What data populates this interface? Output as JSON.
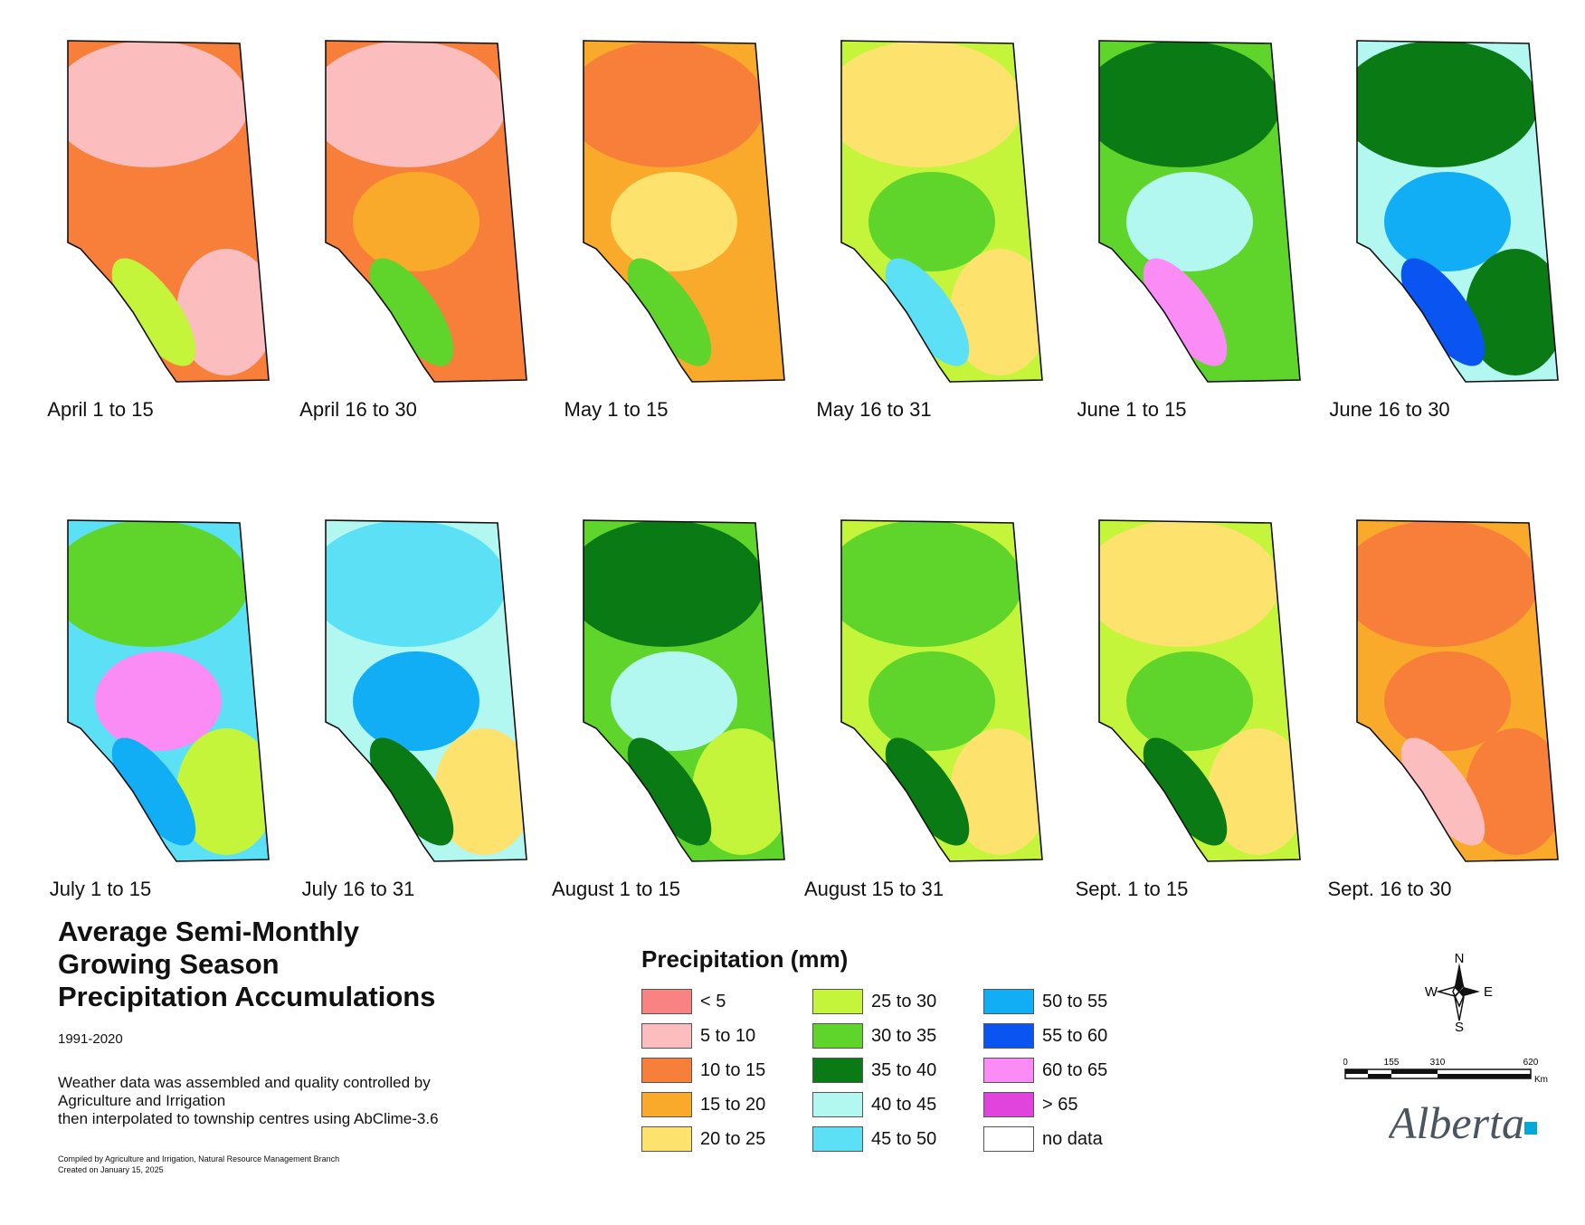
{
  "title_lines": [
    "Average Semi-Monthly",
    "Growing Season",
    "Precipitation Accumulations"
  ],
  "period": "1991-2020",
  "note_lines": [
    "Weather data was assembled and quality controlled by",
    "Agriculture and Irrigation",
    "then interpolated to township centres using AbClime-3.6"
  ],
  "credit_lines": [
    "Compiled by Agriculture and Irrigation, Natural Resource Management Branch",
    "Created on January 15, 2025"
  ],
  "legend": {
    "title": "Precipitation (mm)",
    "items": [
      {
        "label": "< 5",
        "color": "#f98282"
      },
      {
        "label": "5 to 10",
        "color": "#fbbdbd"
      },
      {
        "label": "10 to 15",
        "color": "#f77f3a"
      },
      {
        "label": "15 to 20",
        "color": "#f9aa2b"
      },
      {
        "label": "20 to 25",
        "color": "#fde26e"
      },
      {
        "label": "25 to 30",
        "color": "#c4f53a"
      },
      {
        "label": "30 to 35",
        "color": "#5fd42a"
      },
      {
        "label": "35 to 40",
        "color": "#0a7a14"
      },
      {
        "label": "40 to 45",
        "color": "#b3f8f0"
      },
      {
        "label": "45 to 50",
        "color": "#5ce0f6"
      },
      {
        "label": "50 to 55",
        "color": "#11aef5"
      },
      {
        "label": "55 to 60",
        "color": "#0a55f2"
      },
      {
        "label": "60 to 65",
        "color": "#fb8cf6"
      },
      {
        "label": "> 65",
        "color": "#e044dc"
      },
      {
        "label": "no data",
        "color": "#ffffff"
      }
    ]
  },
  "maps": [
    {
      "label": "April 1 to 15",
      "base": "#f77f3a",
      "n": "#fbbdbd",
      "c": "#f77f3a",
      "s": "#fbbdbd",
      "m": "#c4f53a"
    },
    {
      "label": "April 16 to 30",
      "base": "#f77f3a",
      "n": "#fbbdbd",
      "c": "#f9aa2b",
      "s": "#f77f3a",
      "m": "#5fd42a"
    },
    {
      "label": "May 1 to 15",
      "base": "#f9aa2b",
      "n": "#f77f3a",
      "c": "#fde26e",
      "s": "#f9aa2b",
      "m": "#5fd42a"
    },
    {
      "label": "May 16 to 31",
      "base": "#c4f53a",
      "n": "#fde26e",
      "c": "#5fd42a",
      "s": "#fde26e",
      "m": "#5ce0f6"
    },
    {
      "label": "June 1 to 15",
      "base": "#5fd42a",
      "n": "#0a7a14",
      "c": "#b3f8f0",
      "s": "#5fd42a",
      "m": "#fb8cf6"
    },
    {
      "label": "June 16 to 30",
      "base": "#b3f8f0",
      "n": "#0a7a14",
      "c": "#11aef5",
      "s": "#0a7a14",
      "m": "#0a55f2"
    },
    {
      "label": "July 1 to 15",
      "base": "#5ce0f6",
      "n": "#5fd42a",
      "c": "#fb8cf6",
      "s": "#c4f53a",
      "m": "#11aef5"
    },
    {
      "label": "July 16 to 31",
      "base": "#b3f8f0",
      "n": "#5ce0f6",
      "c": "#11aef5",
      "s": "#fde26e",
      "m": "#0a7a14"
    },
    {
      "label": "August 1 to 15",
      "base": "#5fd42a",
      "n": "#0a7a14",
      "c": "#b3f8f0",
      "s": "#c4f53a",
      "m": "#0a7a14"
    },
    {
      "label": "August 15 to 31",
      "base": "#c4f53a",
      "n": "#5fd42a",
      "c": "#5fd42a",
      "s": "#fde26e",
      "m": "#0a7a14"
    },
    {
      "label": "Sept. 1 to 15",
      "base": "#c4f53a",
      "n": "#fde26e",
      "c": "#5fd42a",
      "s": "#fde26e",
      "m": "#0a7a14"
    },
    {
      "label": "Sept. 16 to 30",
      "base": "#f9aa2b",
      "n": "#f77f3a",
      "c": "#f77f3a",
      "s": "#f77f3a",
      "m": "#fbbdbd"
    }
  ],
  "compass": {
    "n": "N",
    "s": "S",
    "e": "E",
    "w": "W"
  },
  "scale": {
    "ticks": [
      "0",
      "155",
      "310",
      "620"
    ],
    "unit": "Km"
  },
  "logo": {
    "text": "Alberta"
  }
}
